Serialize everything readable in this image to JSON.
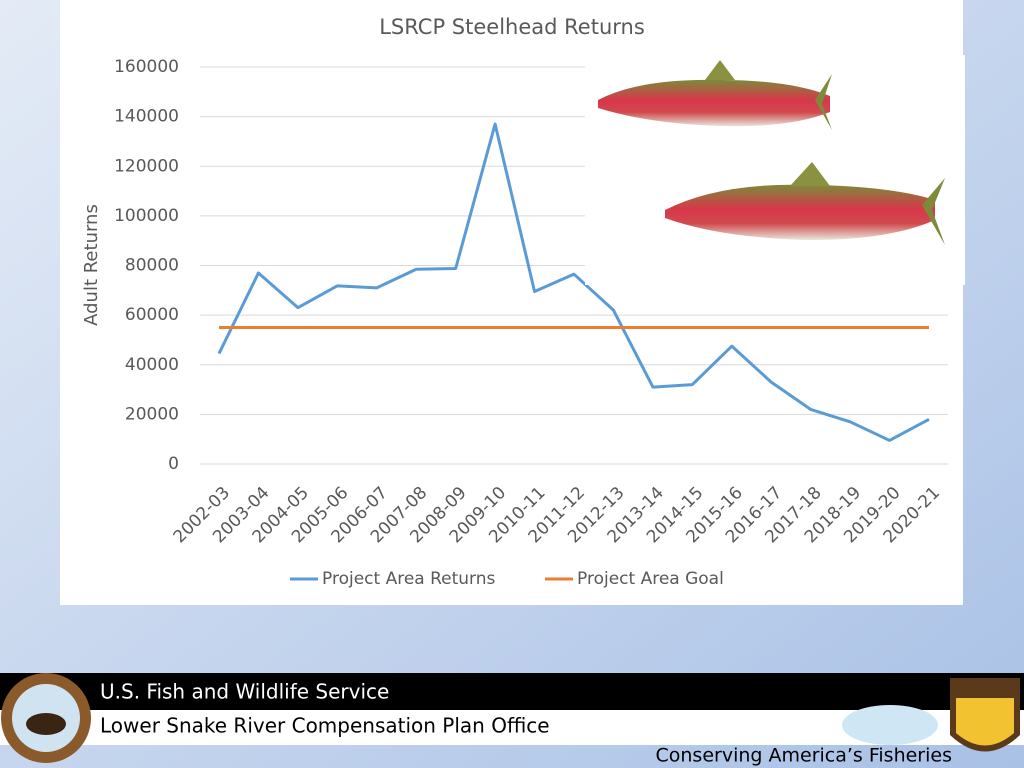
{
  "chart_data": {
    "type": "line",
    "title": "LSRCP Steelhead Returns",
    "y_label": "Adult Returns",
    "categories": [
      "2002-03",
      "2003-04",
      "2004-05",
      "2005-06",
      "2006-07",
      "2007-08",
      "2008-09",
      "2009-10",
      "2010-11",
      "2011-12",
      "2012-13",
      "2013-14",
      "2014-15",
      "2015-16",
      "2016-17",
      "2017-18",
      "2018-19",
      "2019-20",
      "2020-21"
    ],
    "series": [
      {
        "name": "Project Area Returns",
        "color": "#5b9bd5",
        "values": [
          44500,
          77000,
          63000,
          71800,
          71000,
          78500,
          78800,
          137000,
          69500,
          76500,
          62000,
          31000,
          32000,
          47500,
          33000,
          22000,
          17000,
          9500,
          18000
        ]
      },
      {
        "name": "Project Area Goal",
        "color": "#ed7d31",
        "values": [
          55000,
          55000,
          55000,
          55000,
          55000,
          55000,
          55000,
          55000,
          55000,
          55000,
          55000,
          55000,
          55000,
          55000,
          55000,
          55000,
          55000,
          55000,
          55000
        ]
      }
    ],
    "ylim": [
      0,
      160000
    ],
    "yticks": [
      0,
      20000,
      40000,
      60000,
      80000,
      100000,
      120000,
      140000,
      160000
    ],
    "grid": true,
    "legend": "bottom"
  },
  "footer": {
    "agency": "U.S. Fish and Wildlife Service",
    "office": "Lower Snake River Compensation Plan Office",
    "tagline": "Conserving America’s Fisheries"
  }
}
